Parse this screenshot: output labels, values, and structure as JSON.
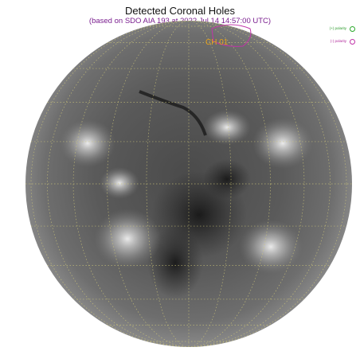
{
  "header": {
    "title": "Detected Coronal Holes",
    "subtitle": "(based on SDO AIA 193 at 2022 Jul 14 14:57:00 UTC)"
  },
  "legend": {
    "positive_label": "(+) polarity",
    "negative_label": "(-) polarity",
    "positive_color": "#2aa82a",
    "negative_color": "#c034a8"
  },
  "coronal_holes": [
    {
      "label": "CH 01",
      "polarity": "negative"
    }
  ],
  "colors": {
    "label": "#e8a21a",
    "grid": "#cfc77a",
    "disk_dark": "#3a3a3a",
    "disk_light": "#9a9a9a"
  }
}
